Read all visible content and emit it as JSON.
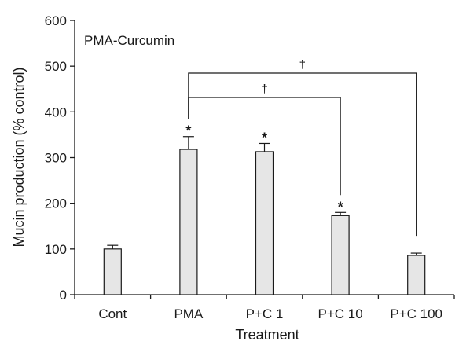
{
  "chart_data": {
    "type": "bar",
    "panel_label": "PMA-Curcumin",
    "xlabel": "Treatment",
    "ylabel": "Mucin production (% control)",
    "categories": [
      "Cont",
      "PMA",
      "P+C 1",
      "P+C 10",
      "P+C 100"
    ],
    "values": [
      100,
      318,
      313,
      173,
      86
    ],
    "errors": [
      8,
      28,
      18,
      7,
      5
    ],
    "significance": [
      "",
      "*",
      "*",
      "*",
      ""
    ],
    "ylim": [
      0,
      600
    ],
    "yticks": [
      "0",
      "100",
      "200",
      "300",
      "400",
      "500",
      "600"
    ],
    "comparisons": [
      {
        "from": "PMA",
        "to": "P+C 10",
        "mark": "†"
      },
      {
        "from": "PMA",
        "to": "P+C 100",
        "mark": "†"
      }
    ],
    "bar_color": "#e6e6e6",
    "line_color": "#1a1a1a",
    "grid": false
  }
}
